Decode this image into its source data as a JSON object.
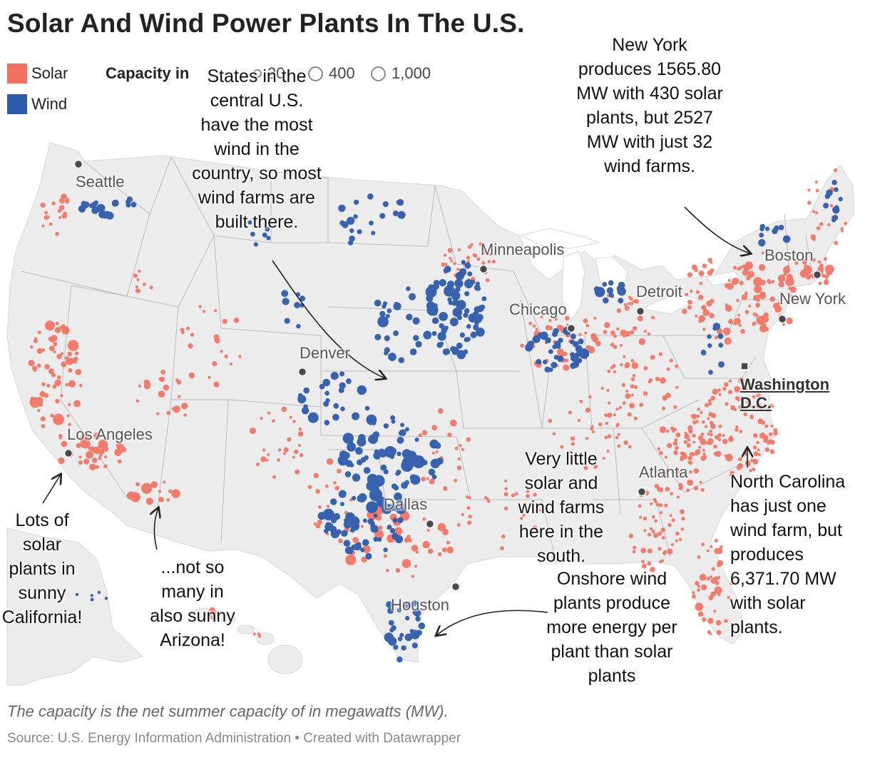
{
  "title": "Solar And Wind Power Plants In The U.S.",
  "legend": {
    "solar": {
      "label": "Solar",
      "color": "#f46f5e"
    },
    "wind": {
      "label": "Wind",
      "color": "#2d5bac"
    },
    "capacity_label": "Capacity in",
    "capacity_partial": "20",
    "capacity_sizes": [
      "400",
      "1,000"
    ]
  },
  "cities": [
    {
      "name": "Seattle",
      "marker": "circle"
    },
    {
      "name": "Minneapolis",
      "marker": "circle"
    },
    {
      "name": "Boston",
      "marker": "circle"
    },
    {
      "name": "Detroit",
      "marker": "circle"
    },
    {
      "name": "Chicago",
      "marker": "circle"
    },
    {
      "name": "New York",
      "marker": "circle"
    },
    {
      "name": "Denver",
      "marker": "circle"
    },
    {
      "name": "Washington D.C.",
      "marker": "square"
    },
    {
      "name": "Los Angeles",
      "marker": "circle"
    },
    {
      "name": "Atlanta",
      "marker": "circle"
    },
    {
      "name": "Dallas",
      "marker": "circle"
    },
    {
      "name": "Houston",
      "marker": "circle"
    }
  ],
  "annotations": {
    "central": "States in the central U.S. have the most wind in the country, so most wind farms are built there.",
    "new_york": "New York produces 1565.80 MW with 430 solar plants, but 2527 MW with just 32 wind farms.",
    "california": "Lots of solar plants in sunny California!",
    "arizona": "...not so many in also sunny Arizona!",
    "south": "Very little solar and wind farms here in the south.",
    "onshore": "Onshore wind plants produce more energy per plant than solar plants",
    "north_carolina": "North Carolina has just one wind farm, but produces 6,371.70 MW with solar plants."
  },
  "footer": {
    "note": "The capacity is the net summer capacity of in megawatts (MW).",
    "source": "Source: U.S. Energy Information Administration • Created with Datawrapper"
  }
}
